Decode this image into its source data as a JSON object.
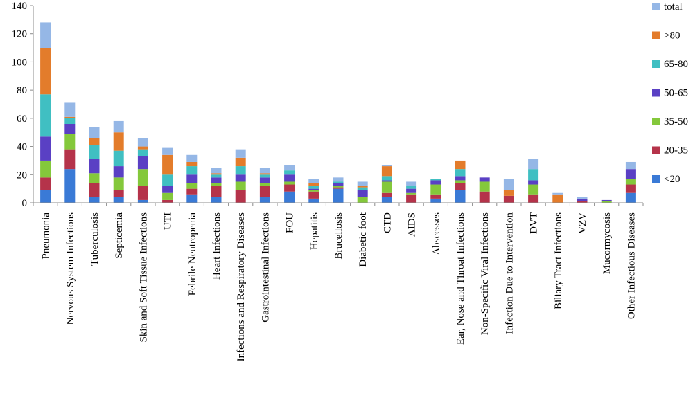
{
  "chart_data": {
    "type": "bar",
    "stacked": true,
    "title": "",
    "xlabel": "",
    "ylabel": "",
    "ylim": [
      0,
      140
    ],
    "yticks": [
      0,
      20,
      40,
      60,
      80,
      100,
      120,
      140
    ],
    "grid": false,
    "legend_placement": "right",
    "categories": [
      "Pneumonia",
      "Nervous System Infections",
      "Tuberculosis",
      "Septicemia",
      "Skin and Soft Tissue Infections",
      "UTI",
      "Febrile Neutropenia",
      "Heart Infections",
      "Infections and Respiratory Diseases",
      "Gastrointestinal Infections",
      "FOU",
      "Hepatitis",
      "Brucellosis",
      "Diabetic foot",
      "CTD",
      "AIDS",
      "Abscesses",
      "Ear, Nose and Throat Infections",
      "Non-Specific Viral Infections",
      "Infection Due to Intervention",
      "DVT",
      "Biliary Tract Infections",
      "VZV",
      "Mucormycosis",
      "Other Infectious Diseases"
    ],
    "series": [
      {
        "name": "<20",
        "color": "#3a7ad6",
        "values": [
          9,
          24,
          4,
          4,
          2,
          0,
          6,
          4,
          0,
          4,
          8,
          3,
          10,
          0,
          4,
          0,
          3,
          9,
          0,
          0,
          0,
          0,
          0,
          0,
          7
        ]
      },
      {
        "name": "20-35",
        "color": "#b5334a",
        "values": [
          9,
          14,
          10,
          5,
          10,
          2,
          4,
          8,
          9,
          8,
          5,
          5,
          1,
          0,
          3,
          6,
          3,
          5,
          8,
          5,
          6,
          0,
          1,
          0,
          6
        ]
      },
      {
        "name": "35-50",
        "color": "#84c83b",
        "values": [
          12,
          11,
          7,
          9,
          12,
          5,
          4,
          2,
          6,
          2,
          2,
          1,
          1,
          4,
          8,
          1,
          7,
          2,
          7,
          0,
          7,
          0,
          0,
          1,
          4
        ]
      },
      {
        "name": "50-65",
        "color": "#5a40c4",
        "values": [
          17,
          7,
          10,
          8,
          9,
          5,
          6,
          4,
          5,
          4,
          5,
          1,
          2,
          5,
          1,
          3,
          3,
          3,
          3,
          0,
          3,
          0,
          2,
          1,
          7
        ]
      },
      {
        "name": "65-80",
        "color": "#40bfc2",
        "values": [
          30,
          4,
          10,
          11,
          5,
          8,
          6,
          2,
          6,
          2,
          3,
          2,
          1,
          2,
          3,
          2,
          1,
          5,
          0,
          0,
          8,
          0,
          0,
          0,
          0
        ]
      },
      {
        "name": ">80",
        "color": "#e37c2b",
        "values": [
          33,
          1,
          5,
          13,
          2,
          14,
          3,
          1,
          6,
          1,
          0,
          2,
          0,
          1,
          7,
          0,
          0,
          6,
          0,
          4,
          0,
          6,
          0,
          0,
          0
        ]
      },
      {
        "name": "total",
        "color": "#95b7e6",
        "values": [
          18,
          10,
          8,
          8,
          6,
          5,
          5,
          4,
          6,
          4,
          4,
          3,
          3,
          3,
          1,
          3,
          0,
          0,
          0,
          8,
          7,
          1,
          1,
          0,
          5
        ]
      }
    ]
  }
}
